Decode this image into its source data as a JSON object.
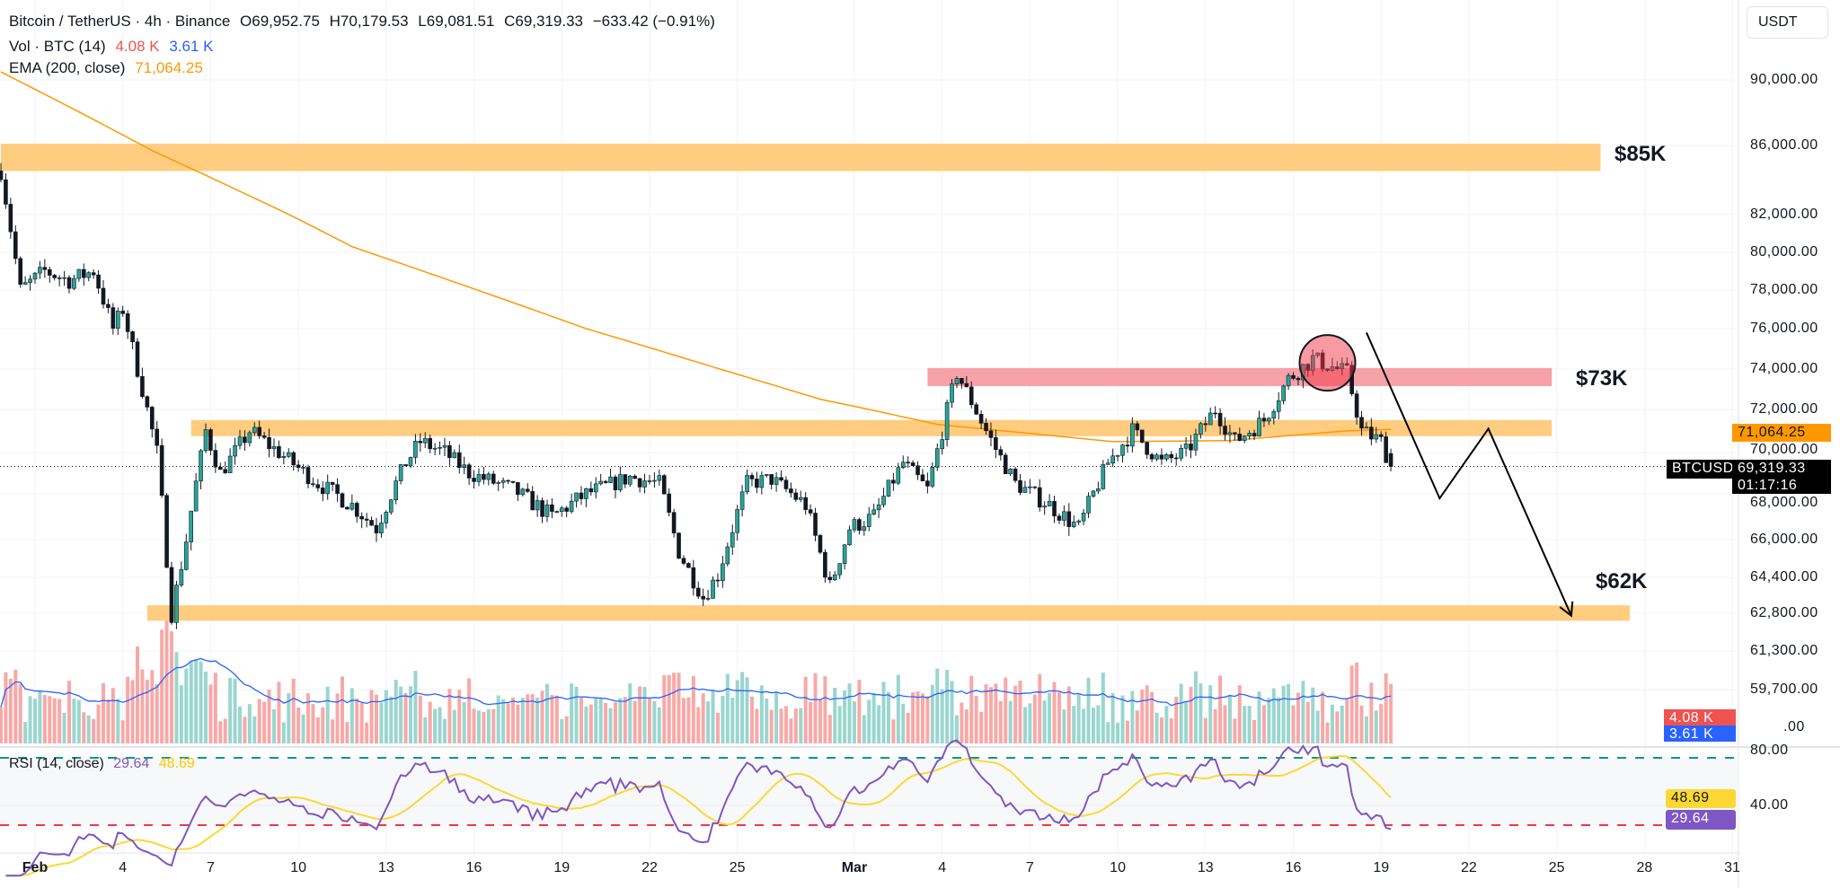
{
  "header": {
    "symbol": "Bitcoin / TetherUS · 4h · Binance",
    "open": "O69,952.75",
    "high": "H70,179.53",
    "low": "L69,081.51",
    "close": "C69,319.33",
    "change": "−633.42 (−0.91%)"
  },
  "vol_legend": {
    "label": "Vol · BTC (14)",
    "sell": "4.08 K",
    "buy": "3.61 K"
  },
  "ema_legend": {
    "label": "EMA (200, close)",
    "value": "71,064.25"
  },
  "rsi_legend": {
    "label": "RSI (14, close)",
    "rsi": "29.64",
    "ma": "48.69"
  },
  "currency_button": "USDT",
  "price_axis": [
    "90,000.00",
    "86,000.00",
    "82,000.00",
    "80,000.00",
    "78,000.00",
    "76,000.00",
    "74,000.00",
    "72,000.00",
    "70,000.00",
    "68,000.00",
    "66,000.00",
    "64,400.00",
    "62,800.00",
    "61,300.00",
    "59,700.00",
    ".00"
  ],
  "rsi_axis": [
    "80.00",
    "40.00"
  ],
  "time_axis": [
    "Feb",
    "4",
    "7",
    "10",
    "13",
    "16",
    "19",
    "22",
    "25",
    "Mar",
    "4",
    "7",
    "10",
    "13",
    "16",
    "19",
    "22",
    "25",
    "28",
    "31"
  ],
  "tags": {
    "symbol": "BTCUSDT",
    "last_price": "69,319.33",
    "countdown": "01:17:16",
    "ema": "71,064.25",
    "vol_sell": "4.08 K",
    "vol_buy": "3.61 K",
    "rsi_ma": "48.69",
    "rsi": "29.64"
  },
  "colors": {
    "up": "#26a69a",
    "down": "#ef5350",
    "ema": "#ff9800",
    "vol_ma": "#2962ff",
    "rsi": "#7e57c2",
    "rsi_ma": "#fdd835",
    "zone": "#ffcc80",
    "resistance": "#f7a1a8",
    "band_upper": "#089981",
    "band_lower": "#f23645"
  },
  "annotations": {
    "zone_85k": "$85K",
    "zone_73k": "$73K",
    "zone_62k": "$62K"
  },
  "chart_data": {
    "type": "candlestick",
    "interval": "4h",
    "scale": "log",
    "price_ticks": [
      90000,
      86000,
      82000,
      80000,
      78000,
      76000,
      74000,
      72000,
      70000,
      68000,
      66000,
      64400,
      62800,
      61300,
      59700
    ],
    "last_candle": {
      "open": 69952.75,
      "high": 70179.53,
      "low": 69081.51,
      "close": 69319.33
    },
    "price_path": [
      [
        "01-30 20:00",
        84500
      ],
      [
        "01-31 12:00",
        78000
      ],
      [
        "02-01 08:00",
        79000
      ],
      [
        "02-02 04:00",
        78500
      ],
      [
        "02-03 00:00",
        79000
      ],
      [
        "02-03 16:00",
        76000
      ],
      [
        "02-04 00:00",
        77000
      ],
      [
        "02-04 16:00",
        73000
      ],
      [
        "02-05 04:00",
        70000
      ],
      [
        "02-05 16:00",
        62800
      ],
      [
        "02-06 04:00",
        66000
      ],
      [
        "02-06 20:00",
        71000
      ],
      [
        "02-07 08:00",
        69000
      ],
      [
        "02-08 08:00",
        71000
      ],
      [
        "02-09 08:00",
        70000
      ],
      [
        "02-10 16:00",
        68500
      ],
      [
        "02-11 20:00",
        67500
      ],
      [
        "02-12 16:00",
        66500
      ],
      [
        "02-13 16:00",
        69500
      ],
      [
        "02-14 04:00",
        70500
      ],
      [
        "02-15 00:00",
        70000
      ],
      [
        "02-15 20:00",
        69000
      ],
      [
        "02-17 08:00",
        68200
      ],
      [
        "02-18 16:00",
        67000
      ],
      [
        "02-19 20:00",
        68000
      ],
      [
        "02-21 08:00",
        68800
      ],
      [
        "02-22 08:00",
        68500
      ],
      [
        "02-23 00:00",
        65500
      ],
      [
        "02-23 20:00",
        63500
      ],
      [
        "02-24 08:00",
        64500
      ],
      [
        "02-25 08:00",
        68500
      ],
      [
        "02-26 04:00",
        68700
      ],
      [
        "02-27 08:00",
        67500
      ],
      [
        "02-28 04:00",
        64000
      ],
      [
        "02-28 20:00",
        66500
      ],
      [
        "03-01 16:00",
        67000
      ],
      [
        "03-02 16:00",
        69500
      ],
      [
        "03-03 12:00",
        68200
      ],
      [
        "03-04 12:00",
        73800
      ],
      [
        "03-05 12:00",
        71000
      ],
      [
        "03-06 12:00",
        68500
      ],
      [
        "03-07 16:00",
        67500
      ],
      [
        "03-08 16:00",
        66500
      ],
      [
        "03-09 16:00",
        69500
      ],
      [
        "03-10 12:00",
        71000
      ],
      [
        "03-11 12:00",
        69500
      ],
      [
        "03-12 08:00",
        70000
      ],
      [
        "03-13 08:00",
        72000
      ],
      [
        "03-14 00:00",
        70500
      ],
      [
        "03-15 00:00",
        71500
      ],
      [
        "03-15 20:00",
        73500
      ],
      [
        "03-16 16:00",
        74500
      ],
      [
        "03-17 20:00",
        73800
      ],
      [
        "03-18 08:00",
        71000
      ],
      [
        "03-19 00:00",
        70500
      ],
      [
        "03-19 08:00",
        69319
      ]
    ],
    "ema_200": [
      [
        "01-30 20:00",
        90500
      ],
      [
        "02-05 00:00",
        85700
      ],
      [
        "02-11 20:00",
        80300
      ],
      [
        "02-19 20:00",
        76000
      ],
      [
        "02-27 20:00",
        72500
      ],
      [
        "03-03 20:00",
        71300
      ],
      [
        "03-09 20:00",
        70500
      ],
      [
        "03-13 20:00",
        70550
      ],
      [
        "03-17 20:00",
        71000
      ],
      [
        "03-19 08:00",
        71064.25
      ]
    ],
    "rsi_bands": [
      70,
      30
    ],
    "zones": [
      {
        "label": "$85K",
        "from": "01-30 20:00",
        "to": "03-26 12:00",
        "low": 84500,
        "high": 86100,
        "color": "zone"
      },
      {
        "label": "",
        "from": "02-06 08:00",
        "to": "03-24 20:00",
        "low": 70750,
        "high": 71500,
        "color": "zone"
      },
      {
        "label": "$73K",
        "from": "03-03 12:00",
        "to": "03-24 20:00",
        "low": 73150,
        "high": 74050,
        "color": "resistance"
      },
      {
        "label": "$62K",
        "from": "02-04 20:00",
        "to": "03-27 12:00",
        "low": 62500,
        "high": 63150,
        "color": "zone"
      }
    ],
    "highlight_circle": {
      "date": "03-17 04:00",
      "price": 74300
    },
    "projection": [
      [
        "03-18 12:00",
        75800
      ],
      [
        "03-21 00:00",
        67800
      ],
      [
        "03-22 16:00",
        71100
      ],
      [
        "03-25 12:00",
        62700
      ]
    ]
  }
}
